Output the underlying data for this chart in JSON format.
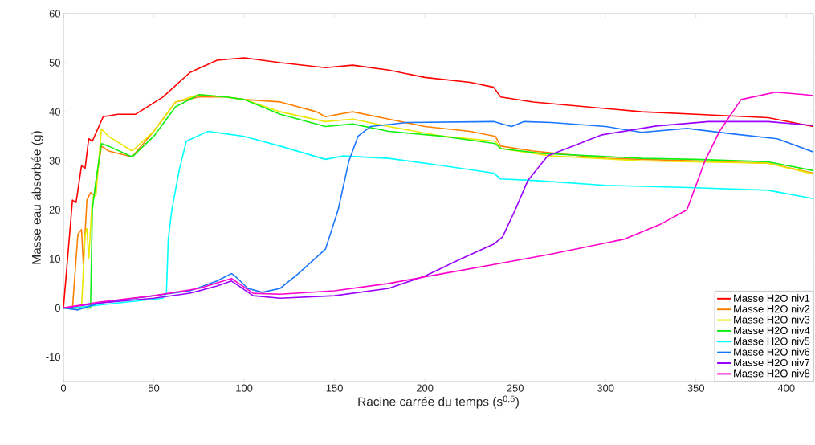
{
  "chart_data": {
    "type": "line",
    "xlabel": "Racine carrée du temps (s$^{0,5}$)",
    "ylabel": "Masse eau absorbée (g)",
    "xlim": [
      0,
      415
    ],
    "ylim": [
      -15,
      60
    ],
    "xticks": [
      0,
      50,
      100,
      150,
      200,
      250,
      300,
      350,
      400
    ],
    "yticks": [
      -10,
      0,
      10,
      20,
      30,
      40,
      50,
      60
    ],
    "grid": false,
    "legend": "bottom right",
    "marker": "none",
    "line_style": "solid",
    "series": [
      {
        "name": "Masse H2O niv1",
        "color": "#ff0000",
        "x": [
          0,
          5,
          7,
          10,
          12,
          14,
          16,
          22,
          30,
          40,
          55,
          70,
          85,
          100,
          120,
          145,
          160,
          180,
          200,
          225,
          238,
          242,
          260,
          290,
          320,
          350,
          390,
          415
        ],
        "values": [
          0,
          22,
          21.5,
          29,
          28.5,
          34.5,
          34,
          39,
          39.5,
          39.5,
          43,
          48,
          50.5,
          51,
          50,
          49,
          49.5,
          48.5,
          47,
          46,
          45,
          43,
          42,
          41,
          40,
          39.5,
          38.8,
          37
        ]
      },
      {
        "name": "Masse H2O niv2",
        "color": "#ff8000",
        "x": [
          0,
          5,
          8,
          10,
          11,
          13,
          15,
          17,
          21,
          25,
          38,
          50,
          62,
          75,
          90,
          100,
          120,
          140,
          145,
          160,
          180,
          200,
          225,
          239,
          242,
          260,
          300,
          350,
          390,
          415
        ],
        "values": [
          0,
          0,
          15,
          16,
          9,
          22,
          23.5,
          23,
          33,
          32,
          30.8,
          36,
          42,
          43,
          43,
          42.5,
          42,
          40,
          39,
          40,
          38.5,
          37,
          36,
          35,
          33,
          32,
          30.5,
          30,
          29.5,
          27.5
        ]
      },
      {
        "name": "Masse H2O niv3",
        "color": "#e8e800",
        "x": [
          0,
          10,
          12,
          13,
          14,
          16,
          18,
          21,
          25,
          38,
          50,
          62,
          75,
          90,
          100,
          120,
          145,
          160,
          180,
          210,
          239,
          242,
          270,
          320,
          390,
          415
        ],
        "values": [
          0,
          0,
          15,
          16.2,
          10,
          22.5,
          23,
          36.5,
          35,
          32,
          36,
          42,
          43.5,
          43,
          42.5,
          40,
          38,
          38.5,
          37,
          35,
          34,
          32.5,
          31,
          30,
          29.5,
          27.3
        ]
      },
      {
        "name": "Masse H2O niv4",
        "color": "#11ee11",
        "x": [
          0,
          15,
          16,
          18,
          21,
          25,
          38,
          50,
          62,
          75,
          90,
          100,
          120,
          145,
          160,
          180,
          210,
          239,
          242,
          265,
          320,
          350,
          390,
          415
        ],
        "values": [
          0,
          0,
          20,
          26,
          33.5,
          33,
          30.8,
          35,
          41,
          43.5,
          43,
          42.5,
          39.5,
          37,
          37.5,
          36,
          35,
          33.5,
          32.5,
          31.5,
          30.5,
          30.3,
          29.8,
          28
        ]
      },
      {
        "name": "Masse H2O niv5",
        "color": "#00ffff",
        "x": [
          0,
          10,
          30,
          55,
          57,
          58,
          60,
          64,
          68,
          80,
          90,
          100,
          120,
          145,
          155,
          180,
          210,
          238,
          242,
          260,
          300,
          350,
          390,
          415
        ],
        "values": [
          0,
          0.2,
          1,
          2,
          3,
          14,
          20,
          28,
          34,
          36,
          35.5,
          35,
          33,
          30.3,
          31,
          30.5,
          29,
          27.5,
          26.3,
          26,
          25,
          24.5,
          24,
          22.3
        ]
      },
      {
        "name": "Masse H2O niv6",
        "color": "#1a75ff",
        "x": [
          0,
          8,
          20,
          40,
          70,
          85,
          93,
          95,
          102,
          110,
          120,
          130,
          145,
          152,
          158,
          163,
          170,
          190,
          238,
          243,
          248,
          255,
          270,
          300,
          320,
          345,
          370,
          395,
          415
        ],
        "values": [
          0,
          -0.4,
          1,
          2,
          3.5,
          5.5,
          7,
          6.5,
          4,
          3.2,
          4,
          7,
          12,
          20,
          30,
          35,
          37,
          37.8,
          38,
          37.5,
          37,
          38,
          37.8,
          37,
          35.8,
          36.6,
          35.5,
          34.5,
          31.8
        ]
      },
      {
        "name": "Masse H2O niv7",
        "color": "#9900ff",
        "x": [
          0,
          20,
          50,
          70,
          85,
          93,
          97,
          105,
          120,
          150,
          180,
          200,
          220,
          238,
          243,
          250,
          257,
          268,
          298,
          328,
          357,
          390,
          415
        ],
        "values": [
          0,
          1,
          2,
          3,
          4.5,
          5.5,
          4.5,
          2.5,
          2,
          2.5,
          4,
          6.5,
          10,
          13,
          14.5,
          20,
          26,
          31,
          35.3,
          37.1,
          38,
          38,
          37.2
        ]
      },
      {
        "name": "Masse H2O niv8",
        "color": "#ff00cc",
        "x": [
          0,
          20,
          50,
          75,
          93,
          97,
          105,
          120,
          150,
          180,
          210,
          240,
          270,
          310,
          330,
          345,
          355,
          363,
          375,
          394,
          410,
          415
        ],
        "values": [
          0,
          1.2,
          2.5,
          4,
          6,
          5,
          3,
          2.8,
          3.5,
          5,
          7,
          9,
          11,
          14,
          17,
          20,
          30,
          36,
          42.5,
          44,
          43.5,
          43.3
        ]
      }
    ]
  }
}
